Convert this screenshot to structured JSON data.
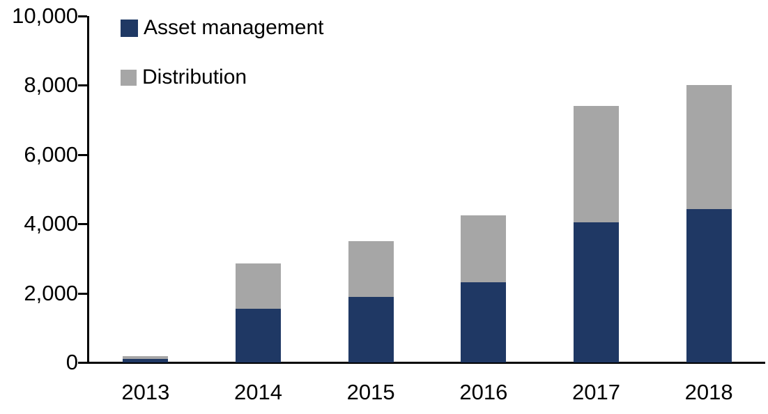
{
  "chart_data": {
    "type": "bar",
    "stacked": true,
    "title": "",
    "categories": [
      "2013",
      "2014",
      "2015",
      "2016",
      "2017",
      "2018"
    ],
    "series": [
      {
        "name": "Asset management",
        "color": "#1F3864",
        "values": [
          100,
          1550,
          1900,
          2310,
          4050,
          4430
        ]
      },
      {
        "name": "Distribution",
        "color": "#A6A6A6",
        "values": [
          90,
          1310,
          1600,
          1940,
          3350,
          3570
        ]
      }
    ],
    "totals": [
      190,
      2860,
      3500,
      4250,
      7400,
      8000
    ],
    "xlabel": "",
    "ylabel": "",
    "ylim": [
      0,
      10000
    ],
    "yticks": [
      {
        "value": 0,
        "label": "0"
      },
      {
        "value": 2000,
        "label": "2,000"
      },
      {
        "value": 4000,
        "label": "4,000"
      },
      {
        "value": 6000,
        "label": "6,000"
      },
      {
        "value": 8000,
        "label": "8,000"
      },
      {
        "value": 10000,
        "label": "10,000"
      }
    ],
    "grid": false,
    "legend_position": "top-left",
    "axis_color": "#000000",
    "background_color": "#FFFFFF"
  }
}
